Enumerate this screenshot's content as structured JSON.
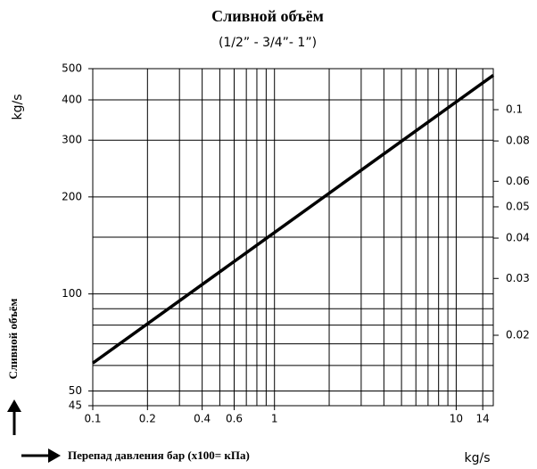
{
  "chart_data": {
    "type": "line",
    "title": "Сливной объём",
    "subtitle": "(1/2” - 3/4”- 1”)",
    "y_unit": "kg/s",
    "y_label": "Сливной объём",
    "x_label": "Перепад давления бар (x100= кПа)",
    "x_unit": "kg/s",
    "log_x": true,
    "log_y": true,
    "grid": true,
    "x": [
      0.1,
      16
    ],
    "series": [
      {
        "name": null,
        "color": "#000000",
        "values": [
          61,
          477
        ]
      }
    ],
    "xlim": [
      0.1,
      16
    ],
    "xticks": [
      0.1,
      0.2,
      0.4,
      0.6,
      1,
      10,
      14
    ],
    "xgrid": [
      0.1,
      0.2,
      0.3,
      0.4,
      0.5,
      0.6,
      0.7,
      0.8,
      0.9,
      1,
      2,
      3,
      4,
      5,
      6,
      7,
      8,
      9,
      10,
      14
    ],
    "ylim": [
      45,
      500
    ],
    "yticks": [
      45,
      50,
      100,
      200,
      300,
      400,
      500
    ],
    "ygrid": [
      45,
      50,
      60,
      70,
      80,
      90,
      100,
      150,
      200,
      300,
      400,
      500
    ],
    "y2lim": [
      0.0121,
      0.134
    ],
    "y2ticks": [
      0.02,
      0.03,
      0.04,
      0.05,
      0.06,
      0.08,
      0.1
    ]
  }
}
